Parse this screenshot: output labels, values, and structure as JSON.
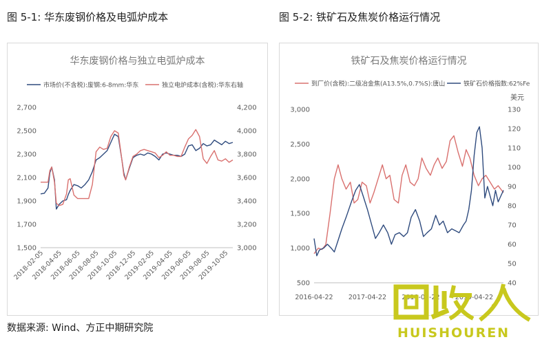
{
  "figure_titles": {
    "left": "图 5-1:  华东废钢价格及电弧炉成本",
    "right": "图 5-2:  铁矿石及焦炭价格运行情况"
  },
  "source": "数据来源:  Wind、方正中期研究院",
  "watermark": {
    "text": "HUISHOUREN",
    "logo": "回收人"
  },
  "colors": {
    "navy": "#2e4a7d",
    "red": "#d9706e"
  },
  "chart_data": [
    {
      "type": "line",
      "title": "华东废钢价格与独立电弧炉成本",
      "legend_position": "top",
      "x_tick_labels": [
        "2018-02-05",
        "2018-04-05",
        "2018-06-05",
        "2018-08-05",
        "2018-10-05",
        "2018-12-05",
        "2019-02-05",
        "2019-04-05",
        "2019-06-05",
        "2019-08-05",
        "2019-10-05"
      ],
      "x_domain": [
        0,
        10.4
      ],
      "y_left": {
        "ticks": [
          "2,700",
          "2,500",
          "2,300",
          "2,100",
          "1,900",
          "1,700",
          "1,500"
        ],
        "min": 1500,
        "max": 2700
      },
      "y_right": {
        "ticks": [
          "4,200",
          "4,000",
          "3,800",
          "3,600",
          "3,400",
          "3,200",
          "3,000"
        ],
        "min": 3000,
        "max": 4200
      },
      "series": [
        {
          "name": "市场价(不含税):废钢:6-8mm:华东",
          "axis": "left",
          "color": "#2e4a7d",
          "x": [
            0,
            0.2,
            0.4,
            0.5,
            0.6,
            0.75,
            0.85,
            1.0,
            1.2,
            1.4,
            1.5,
            1.6,
            1.8,
            2.0,
            2.2,
            2.4,
            2.6,
            2.8,
            3.0,
            3.2,
            3.4,
            3.6,
            3.8,
            4.0,
            4.2,
            4.4,
            4.5,
            4.6,
            4.8,
            5.0,
            5.2,
            5.4,
            5.6,
            5.8,
            6.0,
            6.2,
            6.4,
            6.6,
            6.8,
            7.0,
            7.2,
            7.4,
            7.6,
            7.8,
            8.0,
            8.2,
            8.4,
            8.6,
            8.8,
            9.0,
            9.2,
            9.4,
            9.6,
            9.8,
            10.0,
            10.2,
            10.4
          ],
          "y": [
            1960,
            1965,
            2010,
            2140,
            2190,
            2080,
            1830,
            1870,
            1900,
            1910,
            1955,
            1990,
            2040,
            2030,
            2010,
            2040,
            2080,
            2150,
            2250,
            2270,
            2300,
            2330,
            2400,
            2470,
            2450,
            2250,
            2140,
            2080,
            2180,
            2270,
            2290,
            2300,
            2290,
            2310,
            2300,
            2280,
            2250,
            2300,
            2310,
            2300,
            2290,
            2290,
            2280,
            2300,
            2370,
            2380,
            2330,
            2350,
            2390,
            2370,
            2380,
            2420,
            2400,
            2380,
            2410,
            2390,
            2400
          ]
        },
        {
          "name": "独立电炉成本(含税):华东右轴",
          "axis": "right",
          "color": "#d9706e",
          "x": [
            0,
            0.2,
            0.4,
            0.5,
            0.6,
            0.75,
            0.85,
            1.0,
            1.2,
            1.4,
            1.5,
            1.6,
            1.8,
            2.0,
            2.2,
            2.4,
            2.6,
            2.8,
            3.0,
            3.2,
            3.4,
            3.6,
            3.8,
            4.0,
            4.2,
            4.4,
            4.5,
            4.6,
            4.8,
            5.0,
            5.2,
            5.4,
            5.6,
            5.8,
            6.0,
            6.2,
            6.4,
            6.6,
            6.8,
            7.0,
            7.2,
            7.4,
            7.6,
            7.8,
            8.0,
            8.2,
            8.4,
            8.6,
            8.8,
            9.0,
            9.2,
            9.4,
            9.6,
            9.8,
            10.0,
            10.2,
            10.4
          ],
          "y": [
            3560,
            3560,
            3560,
            3660,
            3690,
            3560,
            3380,
            3360,
            3370,
            3460,
            3580,
            3590,
            3450,
            3420,
            3420,
            3420,
            3420,
            3540,
            3820,
            3860,
            3840,
            3850,
            3950,
            4000,
            3980,
            3750,
            3620,
            3580,
            3690,
            3780,
            3800,
            3830,
            3840,
            3830,
            3820,
            3810,
            3770,
            3790,
            3820,
            3790,
            3790,
            3780,
            3780,
            3860,
            3930,
            3960,
            4010,
            3950,
            3760,
            3720,
            3780,
            3830,
            3750,
            3740,
            3760,
            3730,
            3750
          ]
        }
      ]
    },
    {
      "type": "line",
      "title": "铁矿石及焦炭价格运行情况",
      "legend_position": "top",
      "x_tick_labels": [
        "2016-04-22",
        "2017-04-22",
        "2018-04-22",
        "2019-04-22"
      ],
      "x_domain": [
        0,
        3.55
      ],
      "y_left": {
        "ticks": [
          "3,000",
          "2,500",
          "2,000",
          "1,500",
          "1,000",
          "500"
        ],
        "min": 500,
        "max": 3000
      },
      "y_right": {
        "unit": "美元",
        "ticks": [
          "130",
          "120",
          "110",
          "100",
          "90",
          "80",
          "70",
          "60",
          "50",
          "40"
        ],
        "min": 40,
        "max": 130
      },
      "series": [
        {
          "name": "到厂价(含税):二级冶金焦(A13.5%,0.7%S):唐山",
          "axis": "left",
          "color": "#d9706e",
          "x": [
            0,
            0.08,
            0.15,
            0.22,
            0.3,
            0.38,
            0.45,
            0.52,
            0.6,
            0.68,
            0.75,
            0.82,
            0.9,
            0.98,
            1.05,
            1.12,
            1.2,
            1.28,
            1.35,
            1.42,
            1.5,
            1.58,
            1.65,
            1.72,
            1.8,
            1.88,
            1.95,
            2.02,
            2.1,
            2.18,
            2.25,
            2.32,
            2.4,
            2.48,
            2.55,
            2.62,
            2.7,
            2.78,
            2.85,
            2.92,
            3.0,
            3.08,
            3.15,
            3.22,
            3.3,
            3.38,
            3.45,
            3.55
          ],
          "y": [
            920,
            1000,
            980,
            1050,
            1500,
            2000,
            2200,
            2000,
            1850,
            1950,
            1650,
            1700,
            1950,
            1900,
            1650,
            1800,
            2000,
            2200,
            2000,
            2050,
            1700,
            1650,
            2050,
            2200,
            1950,
            1900,
            2000,
            2300,
            2150,
            2050,
            2200,
            2300,
            2150,
            2250,
            2550,
            2620,
            2380,
            2180,
            2420,
            2300,
            2050,
            1900,
            2000,
            2050,
            1950,
            1850,
            1900,
            1800
          ]
        },
        {
          "name": "铁矿石价格指数:62%Fe",
          "axis": "right",
          "color": "#2e4a7d",
          "x": [
            0,
            0.05,
            0.1,
            0.18,
            0.25,
            0.32,
            0.38,
            0.45,
            0.52,
            0.6,
            0.7,
            0.78,
            0.85,
            0.92,
            1.0,
            1.08,
            1.15,
            1.22,
            1.3,
            1.38,
            1.45,
            1.52,
            1.6,
            1.68,
            1.75,
            1.82,
            1.9,
            1.98,
            2.05,
            2.12,
            2.2,
            2.28,
            2.35,
            2.42,
            2.5,
            2.58,
            2.65,
            2.72,
            2.8,
            2.85,
            2.9,
            2.95,
            3.0,
            3.05,
            3.1,
            3.15,
            3.2,
            3.25,
            3.3,
            3.35,
            3.4,
            3.45,
            3.5,
            3.55
          ],
          "y": [
            63,
            54,
            57,
            58,
            60,
            58,
            56,
            62,
            68,
            74,
            82,
            88,
            91,
            85,
            78,
            70,
            63,
            66,
            70,
            66,
            60,
            65,
            66,
            64,
            66,
            74,
            78,
            72,
            64,
            66,
            68,
            75,
            70,
            72,
            66,
            68,
            67,
            66,
            70,
            72,
            78,
            88,
            106,
            118,
            121,
            110,
            84,
            90,
            85,
            80,
            88,
            82,
            85,
            88
          ]
        }
      ]
    }
  ]
}
